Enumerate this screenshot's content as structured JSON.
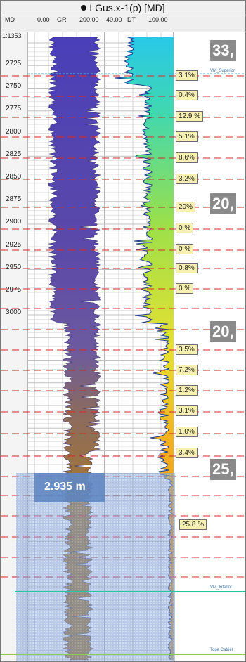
{
  "window": {
    "title": "LGus.x-1(p) [MD]"
  },
  "header": {
    "md_label": "MD",
    "scale": "1:1353",
    "gr_min": "0.00",
    "gr_name": "GR",
    "gr_max": "200.00",
    "dt_min": "40.00",
    "dt_name": "DT",
    "dt_max": "100.00"
  },
  "depth_ticks": [
    "2725",
    "2750",
    "2775",
    "2800",
    "2825",
    "2850",
    "2875",
    "2900",
    "2925",
    "2950",
    "2975",
    "3000"
  ],
  "markers": {
    "vm_superior": "VM_Superior",
    "vm_inferior": "VM_Inferior",
    "tope_catriel": "Tope Catriel"
  },
  "porosity_tags": [
    "3.1%",
    "0.4%",
    "12.9 %",
    "5.1%",
    "8.6%",
    "3.2%",
    "20%",
    "0 %",
    "0 %",
    "0.8%",
    "0 %",
    "3.5%",
    "7.2%",
    "1.2%",
    "3.1%",
    "1.0%",
    "3.4%",
    "25.8 %"
  ],
  "big_labels": [
    "33,",
    "20,",
    "20,",
    "25,"
  ],
  "selection": {
    "depth_label": "2.935 m"
  },
  "colors": {
    "red_dash": "#d42a2a",
    "selection": "#5c84c0",
    "vm_superior_line": "#47b2e0",
    "vm_inferior_line": "#20c8a0",
    "tope_catriel_line": "#8ad24a"
  }
}
